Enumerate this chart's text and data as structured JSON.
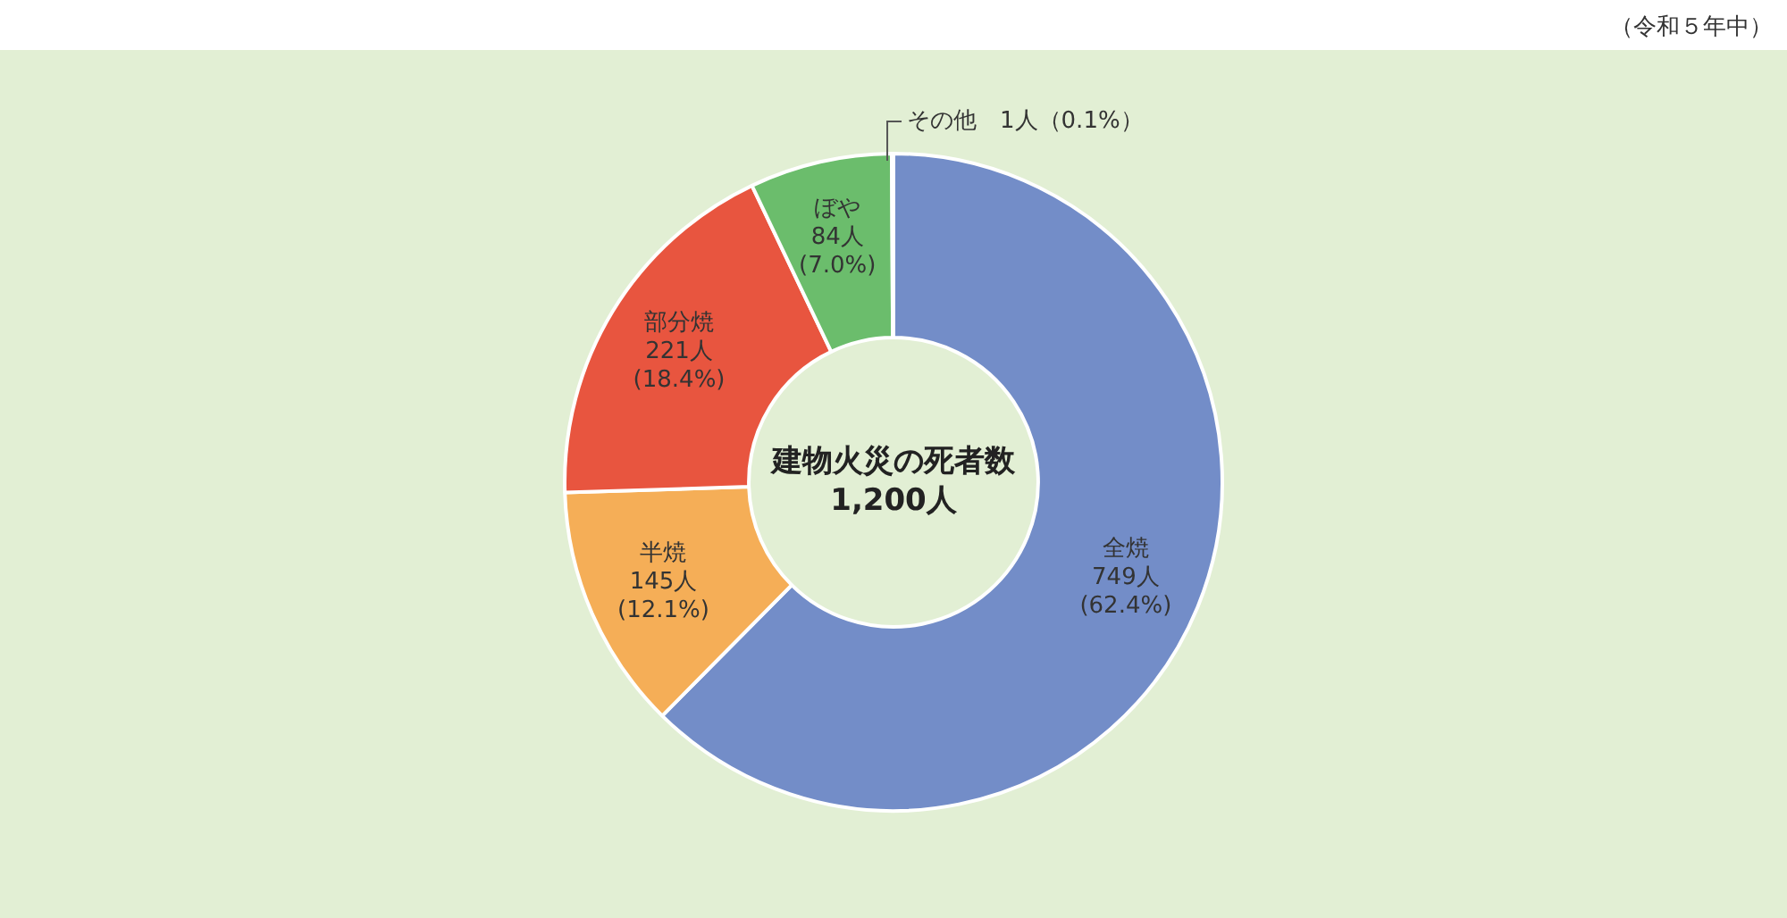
{
  "chart_data": {
    "type": "donut",
    "title": "建物火災の死者数\n1,200人",
    "subtitle": "（令和５年中）",
    "categories": [
      "全焼",
      "半焼",
      "部分焼",
      "ぼや",
      "その他"
    ],
    "values": [
      749,
      145,
      221,
      84,
      1
    ],
    "colors": [
      "#738dc8",
      "#f5ae57",
      "#e8553f",
      "#6bbd6c",
      "#f2d36b"
    ],
    "value_labels": [
      "749人\n(62.4%)",
      "145人\n(12.1%)",
      "221人\n(18.4%)",
      "84人\n(7.0%)",
      "1人（0.1%）"
    ]
  }
}
